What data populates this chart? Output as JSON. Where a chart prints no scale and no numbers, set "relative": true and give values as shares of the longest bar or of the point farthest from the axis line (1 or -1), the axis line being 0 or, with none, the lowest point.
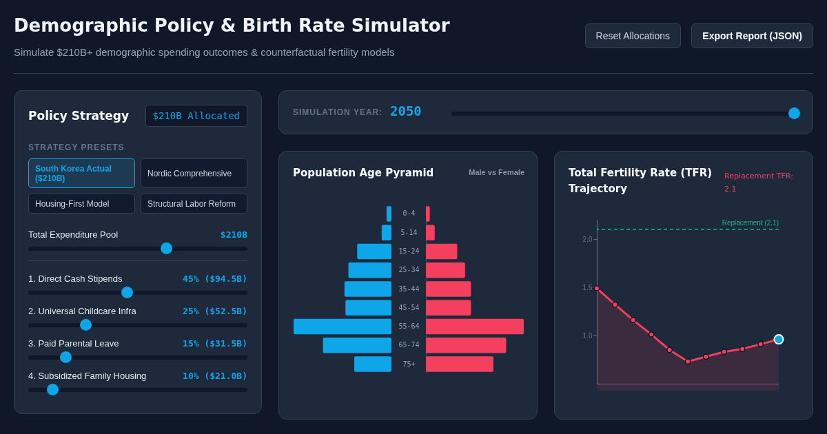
{
  "chart_data": [
    {
      "type": "other",
      "title": "Demographic Policy & Birth Rate Simulator",
      "subtitle": "Simulate $210B+ demographic spending outcomes & counterfactual fertility models",
      "annotations": [
        "Reset Allocations",
        "Export Report (JSON)"
      ]
    },
    {
      "type": "other",
      "title": "Policy Strategy",
      "annotations": [
        "$210B Allocated",
        "STRATEGY PRESETS",
        "South Korea Actual ($210B)",
        "Nordic Comprehensive",
        "Housing-First Model",
        "Structural Labor Reform",
        "Total Expenditure Pool",
        "$210B",
        "1. Direct Cash Stipends",
        "45% ($94.5B)",
        "2. Universal Childcare Infra",
        "25% ($52.5B)",
        "3. Paid Parental Leave",
        "15% ($31.5B)",
        "4. Subsidized Family Housing",
        "10% ($21.0B)"
      ]
    },
    {
      "type": "other",
      "annotations": [
        "SIMULATION YEAR:",
        "2050"
      ]
    },
    {
      "type": "bar",
      "orientation": "horizontal",
      "relative": true,
      "title": "Population Age Pyramid",
      "categories": [
        "0-4",
        "5-14",
        "15-24",
        "25-34",
        "35-44",
        "45-54",
        "55-64",
        "65-74",
        "75+"
      ],
      "series": [
        {
          "color": "#0ea5e9",
          "values": [
            -0.05,
            -0.1,
            -0.35,
            -0.44,
            -0.48,
            -0.47,
            -1,
            -0.7,
            -0.38
          ]
        }
      ]
    },
    {
      "type": "bar",
      "orientation": "horizontal",
      "relative": true,
      "subtitle": "Male vs Female",
      "categories": [
        null,
        null,
        null,
        null,
        null,
        null,
        null,
        null,
        null
      ],
      "series": [
        {
          "color": "#f43f5e",
          "values": [
            0.04,
            0.09,
            0.32,
            0.4,
            0.46,
            0.46,
            1,
            0.82,
            0.69
          ]
        }
      ]
    },
    {
      "type": "area",
      "title": "Total Fertility Rate (TFR) Trajectory",
      "annotations": [
        "Replacement TFR: 2.1"
      ],
      "categories": [
        null,
        null,
        null,
        null,
        null,
        null,
        null,
        null,
        null,
        null,
        null
      ],
      "marker": "circle",
      "tick_labels": "y",
      "grid": false,
      "ylim": [
        0.5,
        2.2
      ],
      "yticks": [
        {
          "value": 1,
          "label": "1.0"
        },
        1.5,
        {
          "value": 2,
          "label": "2.0"
        }
      ],
      "series": [
        {
          "color": "#f43f5e",
          "values": [
            1.49,
            1.32,
            1.16,
            1.01,
            0.85,
            0.73,
            0.78,
            0.83,
            0.86,
            0.91,
            0.96
          ]
        },
        {
          "type": "scatter",
          "color": "#0ea5e9",
          "values": [
            null,
            null,
            null,
            null,
            null,
            null,
            null,
            null,
            null,
            null,
            0.96
          ]
        }
      ],
      "ref_lines": [
        {
          "axis": "y",
          "value": 2.1,
          "label": "Replacement (2.1)",
          "color": "#10b981",
          "line_style": "dashed"
        }
      ]
    }
  ]
}
